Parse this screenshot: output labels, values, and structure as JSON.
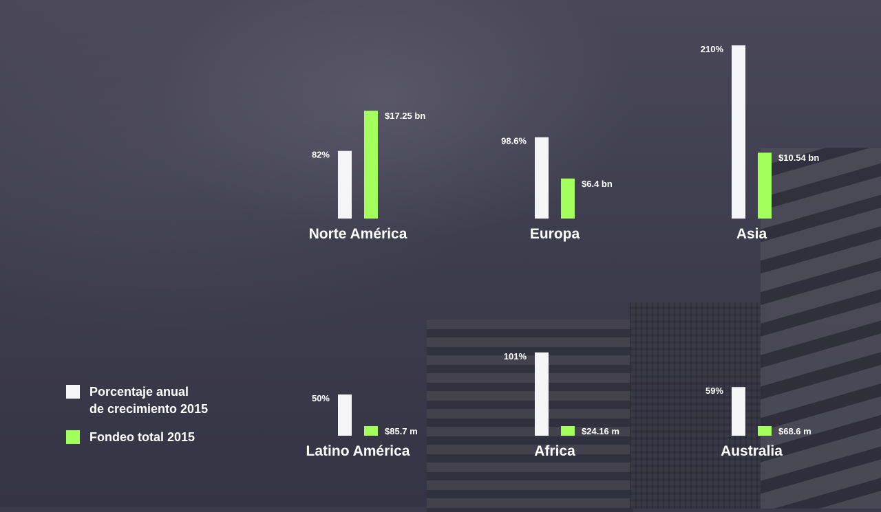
{
  "chart_data": {
    "type": "bar",
    "categories": [
      "Norte América",
      "Europa",
      "Asia",
      "Latino América",
      "Africa",
      "Australia"
    ],
    "series": [
      {
        "name": "Porcentaje anual\nde crecimiento 2015",
        "color": "#f5f5f7",
        "values": [
          82,
          98.6,
          210,
          50,
          101,
          59
        ],
        "labels": [
          "82%",
          "98.6%",
          "210%",
          "50%",
          "101%",
          "59%"
        ]
      },
      {
        "name": "Fondeo total 2015",
        "color": "#a3ff5c",
        "values": [
          17.25,
          6.4,
          10.54,
          0.0857,
          0.02416,
          0.0686
        ],
        "labels": [
          "$17.25 bn",
          "$6.4 bn",
          "$10.54 bn",
          "$85.7 m",
          "$24.16 m",
          "$68.6 m"
        ]
      }
    ],
    "legend_position": "bottom-left",
    "grid": false
  }
}
